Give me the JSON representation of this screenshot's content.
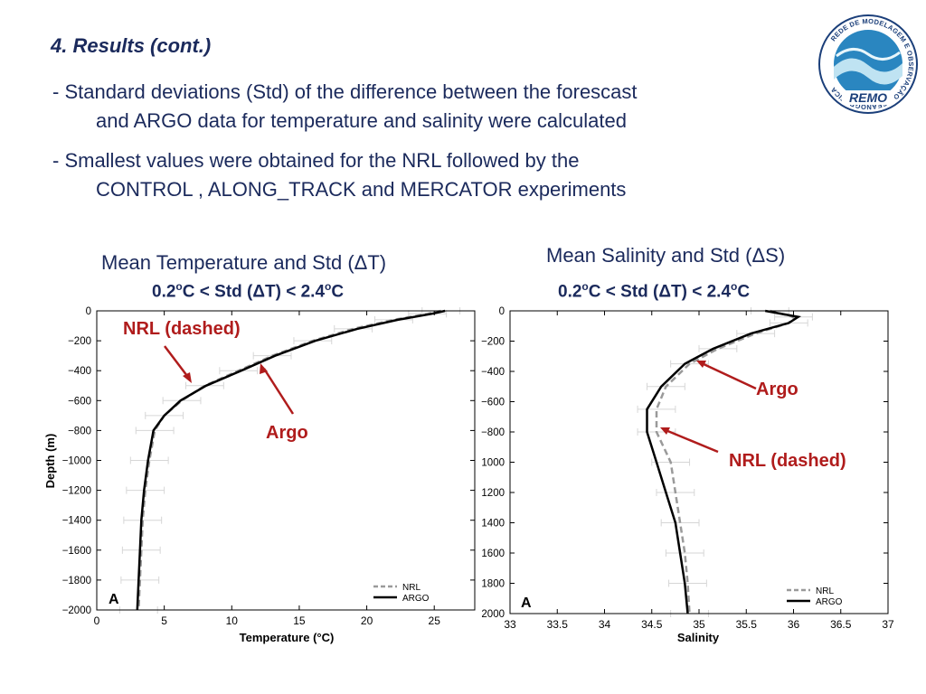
{
  "slide": {
    "title": "4. Results (cont.)",
    "bullets": [
      {
        "line1": "-  Standard deviations (Std) of the difference between the forescast",
        "line2": "and ARGO data for temperature and salinity were calculated"
      },
      {
        "line1": "-  Smallest values were obtained for the NRL followed by the",
        "line2": "CONTROL , ALONG_TRACK and MERCATOR experiments"
      }
    ],
    "logo": {
      "ring_text": "REDE DE MODELAGEM E OBSERVAÇÃO OCEANOGRÁFICA",
      "name": "REMO",
      "colors": {
        "ring": "#1b3f7a",
        "water": "#2a86c0",
        "light": "#bfe3f2"
      }
    }
  },
  "charts": {
    "temperature": {
      "title": "Mean Temperature and Std (ΔT)",
      "subtitle_prefix": "0.2",
      "subtitle_mid": "C < Std (ΔT) <  2.4",
      "subtitle_suffix": "C",
      "deg": "o",
      "panel_letter": "A",
      "annot_nrl": "NRL (dashed)",
      "annot_argo": "Argo"
    },
    "salinity": {
      "title": "Mean Salinity and Std (ΔS)",
      "subtitle_prefix": "0.2",
      "subtitle_mid": "C < Std (ΔT) <  2.4",
      "subtitle_suffix": "C",
      "deg": "o",
      "panel_letter": "A",
      "annot_nrl": "NRL (dashed)",
      "annot_argo": "Argo"
    }
  },
  "chart_data": [
    {
      "type": "line",
      "xlabel": "Temperature (°C)",
      "ylabel": "Depth (m)",
      "xlim": [
        0,
        28
      ],
      "ylim": [
        -2000,
        0
      ],
      "x_ticks": [
        0,
        5,
        10,
        15,
        20,
        25
      ],
      "y_ticks": [
        0,
        -200,
        -400,
        -600,
        -800,
        -1000,
        -1200,
        -1400,
        -1600,
        -1800,
        -2000
      ],
      "y_tick_labels": [
        "0",
        "−200",
        "−400",
        "−600",
        "−800",
        "−1000",
        "−1200",
        "−1400",
        "−1600",
        "−1800",
        "−2000"
      ],
      "legend_position": "bottom-right",
      "series": [
        {
          "name": "NRL",
          "style": "dashed",
          "color": "#9a9a9a",
          "points": [
            [
              25.5,
              0
            ],
            [
              24.5,
              -20
            ],
            [
              22,
              -60
            ],
            [
              19,
              -120
            ],
            [
              16,
              -200
            ],
            [
              13,
              -300
            ],
            [
              10.5,
              -400
            ],
            [
              8,
              -500
            ],
            [
              6.3,
              -600
            ],
            [
              5,
              -700
            ],
            [
              4.3,
              -800
            ],
            [
              3.9,
              -1000
            ],
            [
              3.6,
              -1200
            ],
            [
              3.4,
              -1400
            ],
            [
              3.3,
              -1600
            ],
            [
              3.2,
              -1800
            ],
            [
              3.1,
              -2000
            ]
          ]
        },
        {
          "name": "ARGO",
          "style": "solid",
          "color": "#000000",
          "points": [
            [
              25.8,
              0
            ],
            [
              24.8,
              -20
            ],
            [
              22.3,
              -60
            ],
            [
              19.3,
              -120
            ],
            [
              16.2,
              -200
            ],
            [
              13.2,
              -300
            ],
            [
              10.7,
              -400
            ],
            [
              8.1,
              -500
            ],
            [
              6.2,
              -600
            ],
            [
              5,
              -700
            ],
            [
              4.2,
              -800
            ],
            [
              3.8,
              -1000
            ],
            [
              3.5,
              -1200
            ],
            [
              3.3,
              -1400
            ],
            [
              3.2,
              -1600
            ],
            [
              3.1,
              -1800
            ],
            [
              3.0,
              -2000
            ]
          ]
        }
      ]
    },
    {
      "type": "line",
      "xlabel": "Salinity",
      "ylabel": "",
      "xlim": [
        33,
        37
      ],
      "ylim": [
        -2000,
        0
      ],
      "x_ticks": [
        33,
        33.5,
        34,
        34.5,
        35,
        35.5,
        36,
        36.5,
        37
      ],
      "y_ticks": [
        0,
        -200,
        -400,
        -600,
        -800,
        -1000,
        -1200,
        -1400,
        -1600,
        -1800,
        -2000
      ],
      "y_tick_labels": [
        "0",
        "−200",
        "−400",
        "−600",
        "−800",
        "1000",
        "1200",
        "1400",
        "1600",
        "1800",
        "2000"
      ],
      "legend_position": "bottom-right",
      "series": [
        {
          "name": "NRL",
          "style": "dashed",
          "color": "#9a9a9a",
          "points": [
            [
              35.75,
              0
            ],
            [
              36.0,
              -40
            ],
            [
              35.95,
              -80
            ],
            [
              35.6,
              -150
            ],
            [
              35.2,
              -250
            ],
            [
              34.9,
              -350
            ],
            [
              34.65,
              -500
            ],
            [
              34.55,
              -650
            ],
            [
              34.55,
              -800
            ],
            [
              34.7,
              -1000
            ],
            [
              34.75,
              -1200
            ],
            [
              34.8,
              -1400
            ],
            [
              34.85,
              -1600
            ],
            [
              34.88,
              -1800
            ],
            [
              34.9,
              -2000
            ]
          ]
        },
        {
          "name": "ARGO",
          "style": "solid",
          "color": "#000000",
          "points": [
            [
              35.7,
              0
            ],
            [
              36.05,
              -40
            ],
            [
              35.95,
              -80
            ],
            [
              35.55,
              -150
            ],
            [
              35.15,
              -250
            ],
            [
              34.85,
              -350
            ],
            [
              34.6,
              -500
            ],
            [
              34.45,
              -650
            ],
            [
              34.45,
              -800
            ],
            [
              34.55,
              -1000
            ],
            [
              34.65,
              -1200
            ],
            [
              34.75,
              -1400
            ],
            [
              34.8,
              -1600
            ],
            [
              34.85,
              -1800
            ],
            [
              34.88,
              -2000
            ]
          ]
        }
      ]
    }
  ]
}
